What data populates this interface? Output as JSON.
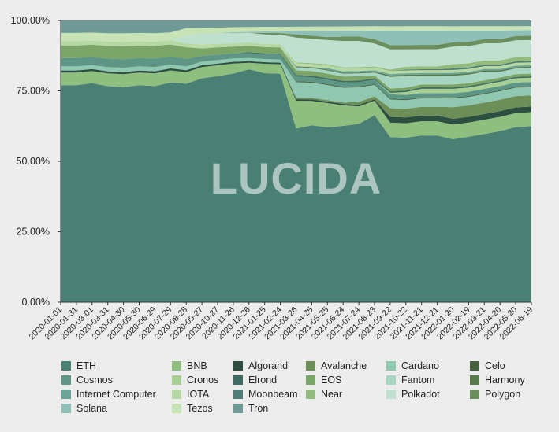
{
  "watermark": "LUCIDA",
  "colors": {
    "background": "#ececec",
    "axis": "#333333"
  },
  "chart_data": {
    "type": "area",
    "stacked": true,
    "normalized": true,
    "title": "",
    "xlabel": "",
    "ylabel": "",
    "ylim": [
      0,
      100
    ],
    "y_tick_labels": [
      "0.00%",
      "25.00%",
      "50.00%",
      "75.00%",
      "100.00%"
    ],
    "y_ticks": [
      0,
      25,
      50,
      75,
      100
    ],
    "x_tick_labels": [
      "2020-01-01",
      "2020-01-31",
      "2020-03-01",
      "2020-03-31",
      "2020-04-30",
      "2020-05-30",
      "2020-06-29",
      "2020-07-29",
      "2020-08-28",
      "2020-09-27",
      "2020-10-27",
      "2020-11-26",
      "2020-12-26",
      "2021-01-25",
      "2021-02-24",
      "2021-03-26",
      "2021-04-25",
      "2021-05-25",
      "2021-06-24",
      "2021-07-24",
      "2021-08-23",
      "2021-09-22",
      "2021-10-22",
      "2021-11-21",
      "2021-12-21",
      "2022-01-20",
      "2022-02-19",
      "2022-03-21",
      "2022-04-20",
      "2022-05-20",
      "2022-06-19"
    ],
    "legend_position": "bottom",
    "grid": false,
    "series": [
      {
        "name": "ETH",
        "color": "#4a7f74",
        "values": [
          52,
          52,
          54,
          51,
          50,
          52,
          51,
          55,
          57,
          60,
          63,
          68,
          72,
          73,
          72,
          56,
          58,
          58,
          60,
          61,
          65,
          57,
          57,
          58,
          58,
          56,
          58,
          59,
          60,
          62,
          63
        ]
      },
      {
        "name": "BNB",
        "color": "#8fbf7f",
        "values": [
          3,
          3,
          3,
          3,
          3,
          3,
          3,
          3,
          3,
          3,
          3,
          3,
          2,
          3,
          3,
          9,
          8,
          8,
          7,
          6,
          5,
          5,
          5,
          5,
          5,
          5,
          5,
          5,
          5,
          5,
          5
        ]
      },
      {
        "name": "Algorand",
        "color": "#2d4f40",
        "values": [
          0.5,
          0.5,
          0.5,
          0.5,
          0.5,
          0.5,
          0.5,
          0.5,
          0.5,
          0.5,
          0.5,
          0.5,
          0.5,
          0.5,
          0.5,
          0.5,
          0.5,
          0.5,
          0.5,
          0.5,
          0.5,
          2,
          2,
          2,
          2,
          2,
          2,
          2,
          2,
          2,
          2
        ]
      },
      {
        "name": "Avalanche",
        "color": "#6b8f56",
        "values": [
          0,
          0,
          0,
          0,
          0,
          0,
          0,
          0,
          0,
          0,
          0,
          0,
          0,
          0,
          0,
          0.5,
          0.5,
          0.5,
          0.5,
          1,
          1,
          3,
          3,
          3,
          3,
          4,
          4,
          4,
          4,
          4,
          4
        ]
      },
      {
        "name": "Cardano",
        "color": "#8fc7b0",
        "values": [
          1,
          1,
          1,
          1,
          1,
          1,
          1,
          1,
          1,
          1,
          1,
          1,
          1,
          1,
          1,
          5,
          5,
          5,
          5,
          5,
          4,
          3,
          3,
          3,
          3,
          3,
          3,
          3,
          3,
          3,
          3
        ]
      },
      {
        "name": "Celo",
        "color": "#466040",
        "values": [
          0,
          0,
          0,
          0,
          0,
          0,
          0,
          0,
          0,
          0,
          0,
          0,
          0,
          0,
          0,
          0.3,
          0.3,
          0.3,
          0.3,
          0.3,
          0.3,
          0.3,
          0.3,
          0.3,
          0.3,
          0.3,
          0.3,
          0.3,
          0.3,
          0.3,
          0.3
        ]
      },
      {
        "name": "Cosmos",
        "color": "#5d9684",
        "values": [
          2,
          2,
          2,
          2,
          2,
          2,
          2,
          2,
          2,
          1.5,
          1.5,
          1.5,
          1.5,
          1.5,
          1.5,
          1.5,
          1.5,
          1.5,
          1.5,
          1.5,
          1.5,
          1.5,
          1.5,
          1.5,
          1.5,
          1.5,
          1.5,
          1.5,
          1.5,
          1.5,
          1.5
        ]
      },
      {
        "name": "Cronos",
        "color": "#a7cf94",
        "values": [
          0,
          0,
          0,
          0,
          0,
          0,
          0,
          0,
          0,
          0,
          0,
          0,
          0,
          0,
          0,
          0,
          0,
          0,
          0,
          0,
          0,
          0.5,
          1,
          1.5,
          1.5,
          1.5,
          1.5,
          1.5,
          1.5,
          1.5,
          1.5
        ]
      },
      {
        "name": "Elrond",
        "color": "#3e6b62",
        "values": [
          0,
          0,
          0,
          0,
          0,
          0,
          0,
          0,
          0,
          0,
          0,
          0,
          0.3,
          0.3,
          0.3,
          0.5,
          0.5,
          0.5,
          0.5,
          0.5,
          0.5,
          0.5,
          0.5,
          0.5,
          0.5,
          0.5,
          0.5,
          0.5,
          0.5,
          0.5,
          0.5
        ]
      },
      {
        "name": "EOS",
        "color": "#7aa566",
        "values": [
          3,
          3,
          3,
          3,
          3,
          3,
          3,
          3,
          3,
          2,
          2,
          2,
          2,
          2,
          2,
          1.5,
          1.5,
          1.5,
          1.5,
          1.5,
          1,
          1,
          1,
          1,
          1,
          1,
          1,
          1,
          1,
          1,
          1
        ]
      },
      {
        "name": "Fantom",
        "color": "#a6d6c1",
        "values": [
          0,
          0,
          0,
          0,
          0,
          0,
          0,
          0,
          0,
          0,
          0,
          0,
          0,
          0,
          0,
          1,
          1,
          1,
          1,
          1,
          1,
          4,
          4,
          3,
          3,
          3,
          3,
          3,
          2,
          2,
          2
        ]
      },
      {
        "name": "Harmony",
        "color": "#587a4c",
        "values": [
          0,
          0,
          0,
          0,
          0,
          0,
          0,
          0,
          0,
          0,
          0,
          0,
          0,
          0,
          0,
          0.3,
          0.3,
          0.3,
          0.3,
          0.3,
          0.3,
          0.5,
          0.5,
          0.5,
          0.5,
          0.5,
          0.5,
          0.5,
          0.5,
          0.5,
          0.5
        ]
      },
      {
        "name": "Internet Computer",
        "color": "#6aa59a",
        "values": [
          0,
          0,
          0,
          0,
          0,
          0,
          0,
          0,
          0,
          0,
          0,
          0,
          0,
          0,
          0,
          0,
          0,
          0.5,
          0.5,
          0.5,
          0.5,
          0.5,
          0.5,
          0.5,
          0.5,
          0.5,
          0.5,
          0.5,
          0.5,
          0.5,
          0.5
        ]
      },
      {
        "name": "IOTA",
        "color": "#b6d8a2",
        "values": [
          1,
          1,
          1,
          1,
          1,
          1,
          1,
          1,
          1,
          1,
          1,
          1,
          1,
          1,
          1,
          1,
          1,
          1,
          1,
          1,
          1,
          1,
          1,
          1,
          1,
          1,
          1,
          1,
          1,
          1,
          1
        ]
      },
      {
        "name": "Moonbeam",
        "color": "#4d7d76",
        "values": [
          0,
          0,
          0,
          0,
          0,
          0,
          0,
          0,
          0,
          0,
          0,
          0,
          0,
          0,
          0,
          0,
          0,
          0,
          0,
          0,
          0,
          0,
          0.3,
          0.3,
          0.3,
          0.5,
          0.5,
          0.5,
          0.5,
          0.5,
          0.5
        ]
      },
      {
        "name": "Near",
        "color": "#93bb7e",
        "values": [
          0,
          0,
          0,
          0,
          0,
          0,
          0,
          0,
          0,
          0,
          0,
          0,
          0,
          0,
          0,
          0.3,
          0.3,
          0.3,
          0.3,
          0.3,
          0.3,
          0.5,
          1,
          1,
          1,
          1.5,
          1.5,
          1.5,
          1.5,
          1.5,
          1.5
        ]
      },
      {
        "name": "Polkadot",
        "color": "#bfe0cf",
        "values": [
          0,
          0,
          0,
          0,
          0,
          0,
          0,
          0,
          2,
          3,
          3,
          3,
          3,
          3,
          3,
          8,
          8,
          8,
          9,
          9,
          8,
          7,
          6,
          6,
          6,
          6,
          6,
          6,
          6,
          6,
          6
        ]
      },
      {
        "name": "Polygon",
        "color": "#6b8e5e",
        "values": [
          0,
          0,
          0,
          0,
          0,
          0,
          0,
          0,
          0,
          0,
          0,
          0,
          0,
          0.5,
          0.5,
          1,
          1,
          1,
          1.5,
          1.5,
          1.5,
          1.5,
          1.5,
          1.5,
          1.5,
          1.5,
          1.5,
          1.5,
          1.5,
          1.5,
          1.5
        ]
      },
      {
        "name": "Solana",
        "color": "#8fc0b8",
        "values": [
          0,
          0,
          0,
          0,
          0,
          0,
          0,
          0,
          0,
          0,
          0,
          0.3,
          0.3,
          0.5,
          0.5,
          1,
          1.5,
          2,
          2,
          2,
          3,
          5,
          5,
          5,
          5,
          4,
          4,
          3,
          3,
          2,
          2
        ]
      },
      {
        "name": "Tezos",
        "color": "#c7e3b5",
        "values": [
          2,
          2,
          2,
          2,
          2,
          2,
          2,
          2,
          2,
          1.5,
          1.5,
          1.5,
          1.5,
          1.5,
          1.5,
          1.5,
          1.5,
          1.5,
          1.5,
          1.5,
          1.5,
          1.5,
          1.5,
          1.5,
          1.5,
          1.5,
          1.5,
          1.5,
          1.5,
          1.5,
          1.5
        ]
      },
      {
        "name": "Tron",
        "color": "#6f9a96",
        "values": [
          3,
          3,
          3,
          3,
          3,
          3,
          3,
          3,
          2,
          2,
          2,
          2,
          2,
          2,
          2,
          2,
          2,
          2,
          2,
          2,
          2,
          2,
          2,
          2,
          2,
          2,
          2,
          2,
          2,
          2,
          2
        ]
      }
    ]
  }
}
